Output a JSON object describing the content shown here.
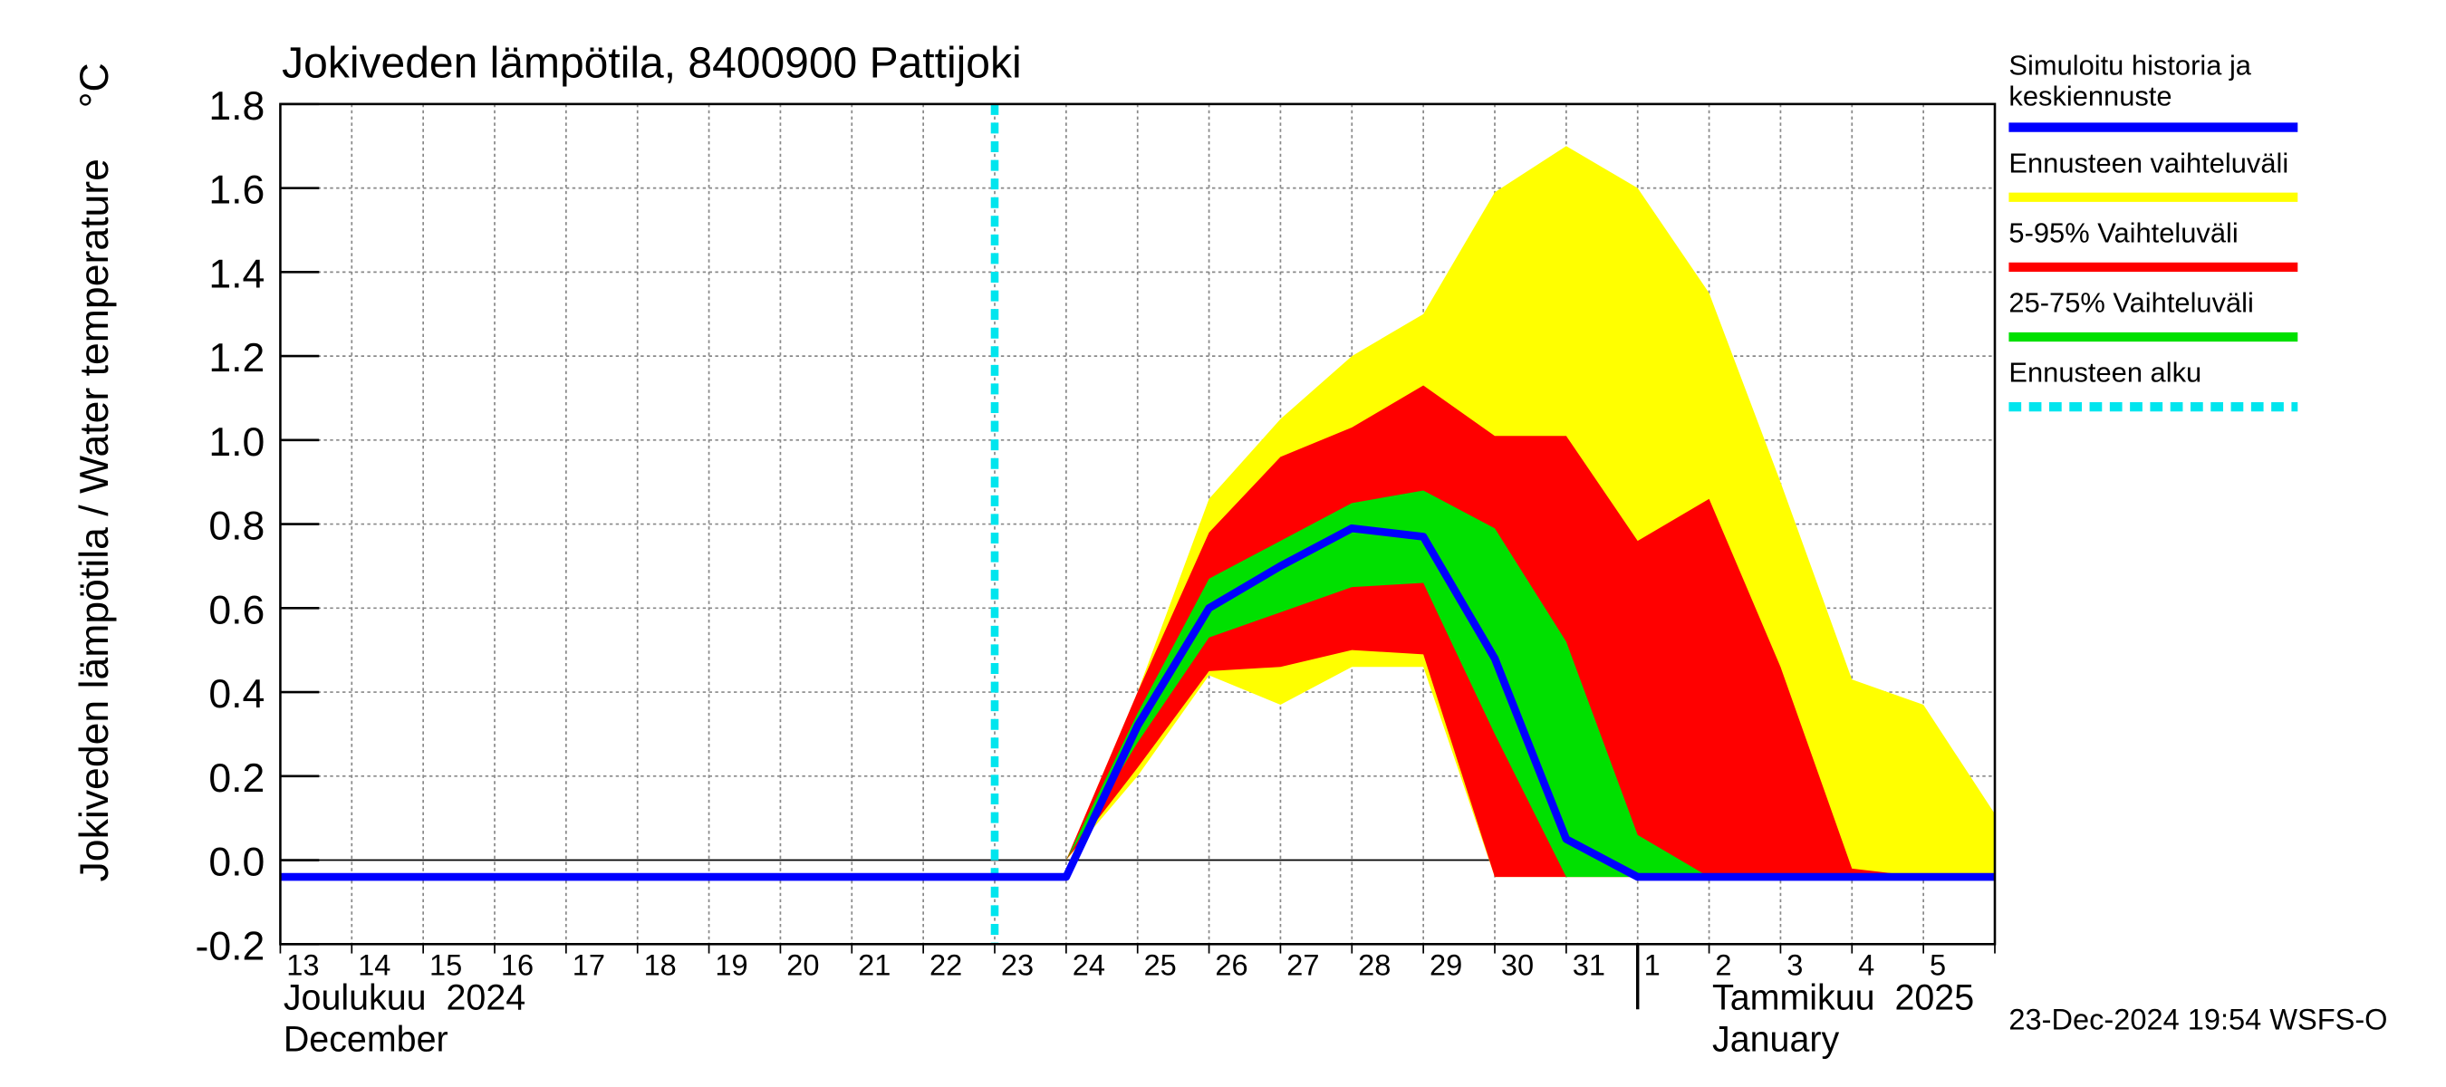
{
  "chart_data": {
    "type": "band-line",
    "title": "Jokiveden lämpötila, 8400900 Pattijoki",
    "y_label": "Jokiveden lämpötila / Water temperature",
    "y_unit": "°C",
    "categories": [
      "13",
      "14",
      "15",
      "16",
      "17",
      "18",
      "19",
      "20",
      "21",
      "22",
      "23",
      "24",
      "25",
      "26",
      "27",
      "28",
      "29",
      "30",
      "31",
      "1",
      "2",
      "3",
      "4",
      "5",
      null
    ],
    "month_labels": [
      {
        "index": 0,
        "lines": [
          "Joulukuu  2024",
          "December"
        ]
      },
      {
        "index": 19,
        "lines": [
          "Tammikuu  2025",
          "January"
        ]
      }
    ],
    "month_boundary_index": 19,
    "forecast_start_index": 10,
    "footer": "23-Dec-2024 19:54 WSFS-O",
    "ylim": [
      -0.2,
      1.8
    ],
    "yticks": [
      -0.2,
      {
        "value": 0,
        "label": "0.0"
      },
      0.2,
      0.4,
      0.6,
      0.8,
      {
        "value": 1,
        "label": "1.0"
      },
      1.2,
      1.4,
      1.6,
      1.8
    ],
    "grid": true,
    "bands": [
      {
        "name": "Ennusteen vaihteluväli",
        "color": "#ffff00",
        "high": [
          null,
          null,
          null,
          null,
          null,
          null,
          null,
          null,
          null,
          null,
          null,
          0,
          0.4,
          0.86,
          1.05,
          1.2,
          1.3,
          1.59,
          1.7,
          1.6,
          1.35,
          0.9,
          0.43,
          0.37,
          0.11
        ],
        "low": [
          null,
          null,
          null,
          null,
          null,
          null,
          null,
          null,
          null,
          null,
          null,
          0,
          0.2,
          0.44,
          0.37,
          0.46,
          0.46,
          -0.04,
          -0.04,
          -0.04,
          -0.04,
          -0.04,
          -0.04,
          -0.04,
          -0.04
        ]
      },
      {
        "name": "5-95% Vaihteluväli",
        "color": "#ff0000",
        "high": [
          null,
          null,
          null,
          null,
          null,
          null,
          null,
          null,
          null,
          null,
          null,
          0,
          0.4,
          0.78,
          0.96,
          1.03,
          1.13,
          1.01,
          1.01,
          0.76,
          0.86,
          0.46,
          -0.02,
          -0.04,
          -0.04
        ],
        "low": [
          null,
          null,
          null,
          null,
          null,
          null,
          null,
          null,
          null,
          null,
          null,
          0,
          0.22,
          0.45,
          0.46,
          0.5,
          0.49,
          -0.04,
          -0.04,
          -0.04,
          -0.04,
          -0.04,
          -0.04,
          -0.04,
          -0.04
        ]
      },
      {
        "name": "25-75% Vaihteluväli",
        "color": "#00e000",
        "high": [
          null,
          null,
          null,
          null,
          null,
          null,
          null,
          null,
          null,
          null,
          null,
          0,
          0.35,
          0.67,
          0.76,
          0.85,
          0.88,
          0.79,
          0.52,
          0.06,
          -0.04,
          -0.04,
          -0.04,
          -0.04,
          -0.04
        ],
        "low": [
          null,
          null,
          null,
          null,
          null,
          null,
          null,
          null,
          null,
          null,
          null,
          0,
          0.28,
          0.53,
          0.59,
          0.65,
          0.66,
          0.3,
          -0.04,
          -0.04,
          -0.04,
          -0.04,
          -0.04,
          -0.04,
          -0.04
        ]
      }
    ],
    "series": [
      {
        "name": "Simuloitu historia ja keskiennuste",
        "color": "#0000ff",
        "values": [
          -0.04,
          -0.04,
          -0.04,
          -0.04,
          -0.04,
          -0.04,
          -0.04,
          -0.04,
          -0.04,
          -0.04,
          -0.04,
          -0.04,
          0.32,
          0.6,
          0.7,
          0.79,
          0.77,
          0.48,
          0.05,
          -0.04,
          -0.04,
          -0.04,
          -0.04,
          -0.04,
          -0.04
        ]
      }
    ],
    "forecast_line": {
      "name": "Ennusteen alku",
      "color": "#00e5ee"
    }
  }
}
